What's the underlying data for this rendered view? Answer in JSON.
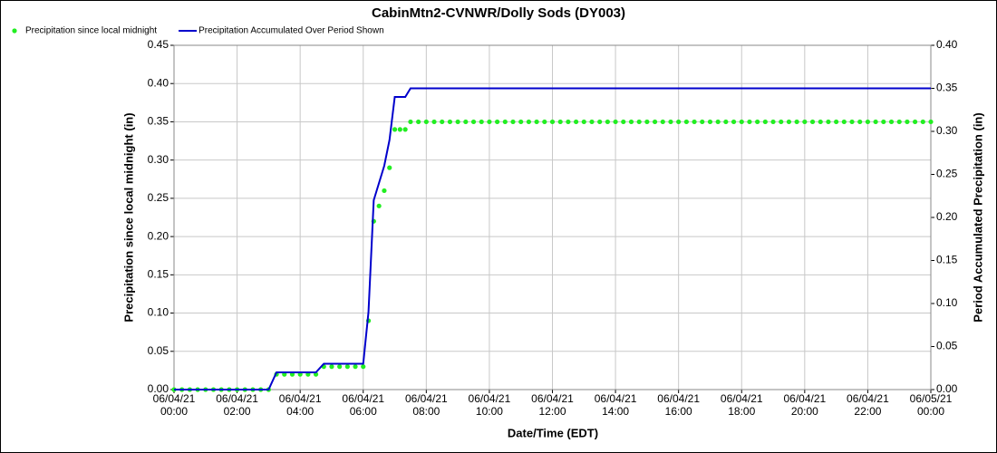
{
  "chart_data": {
    "type": "line-scatter",
    "title": "CabinMtn2-CVNWR/Dolly Sods (DY003)",
    "x_label": "Date/Time (EDT)",
    "y_label": "Precipitation since local midnight (in)",
    "y2_label": "Period Accumulated Precipitation (in)",
    "x": [
      "06/04/21 00:00",
      "06/04/21 00:15",
      "06/04/21 00:30",
      "06/04/21 00:45",
      "06/04/21 01:00",
      "06/04/21 01:15",
      "06/04/21 01:30",
      "06/04/21 01:45",
      "06/04/21 02:00",
      "06/04/21 02:15",
      "06/04/21 02:30",
      "06/04/21 02:45",
      "06/04/21 03:00",
      "06/04/21 03:15",
      "06/04/21 03:30",
      "06/04/21 03:45",
      "06/04/21 04:00",
      "06/04/21 04:15",
      "06/04/21 04:30",
      "06/04/21 04:45",
      "06/04/21 05:00",
      "06/04/21 05:15",
      "06/04/21 05:30",
      "06/04/21 05:45",
      "06/04/21 06:00",
      "06/04/21 06:10",
      "06/04/21 06:20",
      "06/04/21 06:30",
      "06/04/21 06:40",
      "06/04/21 06:50",
      "06/04/21 07:00",
      "06/04/21 07:10",
      "06/04/21 07:20",
      "06/04/21 07:30",
      "06/04/21 07:45",
      "06/04/21 08:00",
      "06/04/21 08:15",
      "06/04/21 08:30",
      "06/04/21 08:45",
      "06/04/21 09:00",
      "06/04/21 09:15",
      "06/04/21 09:30",
      "06/04/21 09:45",
      "06/04/21 10:00",
      "06/04/21 10:15",
      "06/04/21 10:30",
      "06/04/21 10:45",
      "06/04/21 11:00",
      "06/04/21 11:15",
      "06/04/21 11:30",
      "06/04/21 11:45",
      "06/04/21 12:00",
      "06/04/21 12:15",
      "06/04/21 12:30",
      "06/04/21 12:45",
      "06/04/21 13:00",
      "06/04/21 13:15",
      "06/04/21 13:30",
      "06/04/21 13:45",
      "06/04/21 14:00",
      "06/04/21 14:15",
      "06/04/21 14:30",
      "06/04/21 14:45",
      "06/04/21 15:00",
      "06/04/21 15:15",
      "06/04/21 15:30",
      "06/04/21 15:45",
      "06/04/21 16:00",
      "06/04/21 16:15",
      "06/04/21 16:30",
      "06/04/21 16:45",
      "06/04/21 17:00",
      "06/04/21 17:15",
      "06/04/21 17:30",
      "06/04/21 17:45",
      "06/04/21 18:00",
      "06/04/21 18:15",
      "06/04/21 18:30",
      "06/04/21 18:45",
      "06/04/21 19:00",
      "06/04/21 19:15",
      "06/04/21 19:30",
      "06/04/21 19:45",
      "06/04/21 20:00",
      "06/04/21 20:15",
      "06/04/21 20:30",
      "06/04/21 20:45",
      "06/04/21 21:00",
      "06/04/21 21:15",
      "06/04/21 21:30",
      "06/04/21 21:45",
      "06/04/21 22:00",
      "06/04/21 22:15",
      "06/04/21 22:30",
      "06/04/21 22:45",
      "06/04/21 23:00",
      "06/04/21 23:15",
      "06/04/21 23:30",
      "06/04/21 23:45",
      "06/05/21 00:00"
    ],
    "series": [
      {
        "name": "Precipitation since local midnight",
        "kind": "scatter",
        "color": "#22ee22",
        "axis": "y",
        "values": [
          0,
          0,
          0,
          0,
          0,
          0,
          0,
          0,
          0,
          0,
          0,
          0,
          0,
          0.02,
          0.02,
          0.02,
          0.02,
          0.02,
          0.02,
          0.03,
          0.03,
          0.03,
          0.03,
          0.03,
          0.03,
          0.09,
          0.22,
          0.24,
          0.26,
          0.29,
          0.34,
          0.34,
          0.34,
          0.35,
          0.35,
          0.35,
          0.35,
          0.35,
          0.35,
          0.35,
          0.35,
          0.35,
          0.35,
          0.35,
          0.35,
          0.35,
          0.35,
          0.35,
          0.35,
          0.35,
          0.35,
          0.35,
          0.35,
          0.35,
          0.35,
          0.35,
          0.35,
          0.35,
          0.35,
          0.35,
          0.35,
          0.35,
          0.35,
          0.35,
          0.35,
          0.35,
          0.35,
          0.35,
          0.35,
          0.35,
          0.35,
          0.35,
          0.35,
          0.35,
          0.35,
          0.35,
          0.35,
          0.35,
          0.35,
          0.35,
          0.35,
          0.35,
          0.35,
          0.35,
          0.35,
          0.35,
          0.35,
          0.35,
          0.35,
          0.35,
          0.35,
          0.35,
          0.35,
          0.35,
          0.35,
          0.35,
          0.35,
          0.35,
          0.35,
          0.35
        ]
      },
      {
        "name": "Precipitation Accumulated Over Period Shown",
        "kind": "line",
        "color": "#0000cc",
        "axis": "y2",
        "values": [
          0,
          0,
          0,
          0,
          0,
          0,
          0,
          0,
          0,
          0,
          0,
          0,
          0,
          0.02,
          0.02,
          0.02,
          0.02,
          0.02,
          0.02,
          0.03,
          0.03,
          0.03,
          0.03,
          0.03,
          0.03,
          0.09,
          0.22,
          0.24,
          0.26,
          0.29,
          0.34,
          0.34,
          0.34,
          0.35,
          0.35,
          0.35,
          0.35,
          0.35,
          0.35,
          0.35,
          0.35,
          0.35,
          0.35,
          0.35,
          0.35,
          0.35,
          0.35,
          0.35,
          0.35,
          0.35,
          0.35,
          0.35,
          0.35,
          0.35,
          0.35,
          0.35,
          0.35,
          0.35,
          0.35,
          0.35,
          0.35,
          0.35,
          0.35,
          0.35,
          0.35,
          0.35,
          0.35,
          0.35,
          0.35,
          0.35,
          0.35,
          0.35,
          0.35,
          0.35,
          0.35,
          0.35,
          0.35,
          0.35,
          0.35,
          0.35,
          0.35,
          0.35,
          0.35,
          0.35,
          0.35,
          0.35,
          0.35,
          0.35,
          0.35,
          0.35,
          0.35,
          0.35,
          0.35,
          0.35,
          0.35,
          0.35,
          0.35,
          0.35,
          0.35,
          0.35
        ]
      }
    ],
    "xlim": [
      "06/04/21 00:00",
      "06/05/21 00:00"
    ],
    "xticks": [
      "06/04/21 00:00",
      "06/04/21 02:00",
      "06/04/21 04:00",
      "06/04/21 06:00",
      "06/04/21 08:00",
      "06/04/21 10:00",
      "06/04/21 12:00",
      "06/04/21 14:00",
      "06/04/21 16:00",
      "06/04/21 18:00",
      "06/04/21 20:00",
      "06/04/21 22:00",
      "06/05/21 00:00"
    ],
    "ylim": [
      0,
      0.45
    ],
    "yticks": [
      {
        "value": 0,
        "label": "0.00"
      },
      {
        "value": 0.05,
        "label": "0.05"
      },
      {
        "value": 0.1,
        "label": "0.10"
      },
      {
        "value": 0.15,
        "label": "0.15"
      },
      {
        "value": 0.2,
        "label": "0.20"
      },
      {
        "value": 0.25,
        "label": "0.25"
      },
      {
        "value": 0.3,
        "label": "0.30"
      },
      {
        "value": 0.35,
        "label": "0.35"
      },
      {
        "value": 0.4,
        "label": "0.40"
      },
      {
        "value": 0.45,
        "label": "0.45"
      }
    ],
    "y2lim": [
      0,
      0.4
    ],
    "y2ticks": [
      {
        "value": 0,
        "label": "0.00"
      },
      {
        "value": 0.05,
        "label": "0.05"
      },
      {
        "value": 0.1,
        "label": "0.10"
      },
      {
        "value": 0.15,
        "label": "0.15"
      },
      {
        "value": 0.2,
        "label": "0.20"
      },
      {
        "value": 0.25,
        "label": "0.25"
      },
      {
        "value": 0.3,
        "label": "0.30"
      },
      {
        "value": 0.35,
        "label": "0.35"
      },
      {
        "value": 0.4,
        "label": "0.40"
      }
    ],
    "grid": true
  }
}
